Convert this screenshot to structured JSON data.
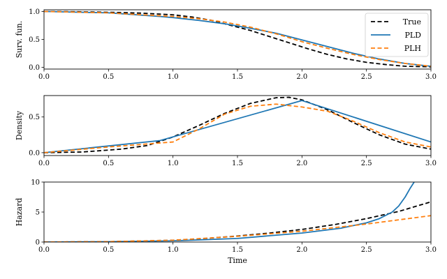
{
  "chart_data": [
    {
      "type": "line",
      "ylabel": "Surv. fun.",
      "xlabel": "",
      "xlim": [
        0,
        3
      ],
      "ylim": [
        -0.03,
        1.03
      ],
      "xticks": [
        0,
        0.5,
        1,
        1.5,
        2,
        2.5,
        3
      ],
      "xtick_labels": [
        "0.0",
        "0.5",
        "1.0",
        "1.5",
        "2.0",
        "2.5",
        "3.0"
      ],
      "yticks": [
        0,
        0.5,
        1
      ],
      "ytick_labels": [
        "0.0",
        "0.5",
        "1.0"
      ],
      "legend": {
        "placement": "top-right",
        "entries": [
          "True",
          "PLD",
          "PLH"
        ]
      },
      "series": [
        {
          "name": "True",
          "color": "#000000",
          "dash": "dashed",
          "x": [
            0,
            0.25,
            0.5,
            0.75,
            1.0,
            1.15,
            1.3,
            1.45,
            1.6,
            1.75,
            1.9,
            2.05,
            2.2,
            2.35,
            2.5,
            2.65,
            2.8,
            3.0
          ],
          "y": [
            1.0,
            0.995,
            0.985,
            0.97,
            0.94,
            0.9,
            0.84,
            0.75,
            0.66,
            0.55,
            0.44,
            0.33,
            0.23,
            0.15,
            0.09,
            0.05,
            0.02,
            0.01
          ]
        },
        {
          "name": "PLD",
          "color": "#1f77b4",
          "dash": "solid",
          "x": [
            0,
            0.5,
            0.9,
            1.0,
            1.2,
            1.4,
            1.6,
            1.8,
            2.0,
            2.2,
            2.4,
            2.6,
            2.8,
            3.0
          ],
          "y": [
            1.0,
            0.975,
            0.91,
            0.89,
            0.84,
            0.78,
            0.7,
            0.61,
            0.49,
            0.37,
            0.25,
            0.15,
            0.07,
            0.02
          ]
        },
        {
          "name": "PLH",
          "color": "#ff7f0e",
          "dash": "dashed",
          "x": [
            0,
            0.5,
            1.0,
            1.2,
            1.4,
            1.6,
            1.8,
            2.0,
            2.2,
            2.4,
            2.6,
            2.8,
            3.0
          ],
          "y": [
            1.0,
            0.975,
            0.91,
            0.87,
            0.81,
            0.72,
            0.6,
            0.46,
            0.34,
            0.23,
            0.14,
            0.07,
            0.02
          ]
        }
      ]
    },
    {
      "type": "line",
      "ylabel": "Density",
      "xlabel": "",
      "xlim": [
        0,
        3
      ],
      "ylim": [
        -0.04,
        0.8
      ],
      "xticks": [
        0,
        0.5,
        1,
        1.5,
        2,
        2.5,
        3
      ],
      "xtick_labels": [
        "0.0",
        "0.5",
        "1.0",
        "1.5",
        "2.0",
        "2.5",
        "3.0"
      ],
      "yticks": [
        0,
        0.5
      ],
      "ytick_labels": [
        "0.0",
        "0.5"
      ],
      "series": [
        {
          "name": "True",
          "color": "#000000",
          "dash": "dashed",
          "x": [
            0,
            0.3,
            0.6,
            0.8,
            1.0,
            1.2,
            1.4,
            1.6,
            1.8,
            1.9,
            2.0,
            2.2,
            2.4,
            2.6,
            2.8,
            3.0
          ],
          "y": [
            0.0,
            0.01,
            0.05,
            0.1,
            0.22,
            0.38,
            0.55,
            0.69,
            0.77,
            0.775,
            0.74,
            0.6,
            0.42,
            0.25,
            0.12,
            0.05
          ]
        },
        {
          "name": "PLD",
          "color": "#1f77b4",
          "dash": "solid",
          "x": [
            0,
            0.9,
            2.0,
            3.0
          ],
          "y": [
            0.0,
            0.17,
            0.73,
            0.15
          ]
        },
        {
          "name": "PLH",
          "color": "#ff7f0e",
          "dash": "dashed",
          "x": [
            0,
            0.5,
            1.0,
            1.2,
            1.4,
            1.6,
            1.8,
            2.0,
            2.2,
            2.4,
            2.6,
            2.8,
            3.0
          ],
          "y": [
            0.0,
            0.08,
            0.15,
            0.33,
            0.54,
            0.65,
            0.68,
            0.64,
            0.58,
            0.44,
            0.28,
            0.15,
            0.08
          ]
        }
      ]
    },
    {
      "type": "line",
      "ylabel": "Hazard",
      "xlabel": "Time",
      "xlim": [
        0,
        3
      ],
      "ylim": [
        0,
        10
      ],
      "xticks": [
        0,
        0.5,
        1,
        1.5,
        2,
        2.5,
        3
      ],
      "xtick_labels": [
        "0.0",
        "0.5",
        "1.0",
        "1.5",
        "2.0",
        "2.5",
        "3.0"
      ],
      "yticks": [
        0,
        5,
        10
      ],
      "ytick_labels": [
        "0",
        "5",
        "10"
      ],
      "series": [
        {
          "name": "True",
          "color": "#000000",
          "dash": "dashed",
          "x": [
            0,
            0.5,
            1.0,
            1.25,
            1.5,
            1.75,
            2.0,
            2.25,
            2.5,
            2.75,
            3.0
          ],
          "y": [
            0.0,
            0.06,
            0.3,
            0.6,
            1.0,
            1.5,
            2.1,
            2.9,
            3.9,
            5.1,
            6.7
          ]
        },
        {
          "name": "PLD",
          "color": "#1f77b4",
          "dash": "solid",
          "x": [
            0,
            0.5,
            1.0,
            1.5,
            2.0,
            2.3,
            2.5,
            2.6,
            2.7,
            2.75,
            2.8,
            2.84,
            2.87
          ],
          "y": [
            0.0,
            0.05,
            0.2,
            0.6,
            1.5,
            2.3,
            3.2,
            3.9,
            5.0,
            6.0,
            7.5,
            9.0,
            10.0
          ]
        },
        {
          "name": "PLH",
          "color": "#ff7f0e",
          "dash": "dashed",
          "x": [
            0,
            0.5,
            1.0,
            1.5,
            2.0,
            2.5,
            3.0
          ],
          "y": [
            0.0,
            0.06,
            0.3,
            0.95,
            1.8,
            3.0,
            4.4
          ]
        }
      ]
    }
  ]
}
